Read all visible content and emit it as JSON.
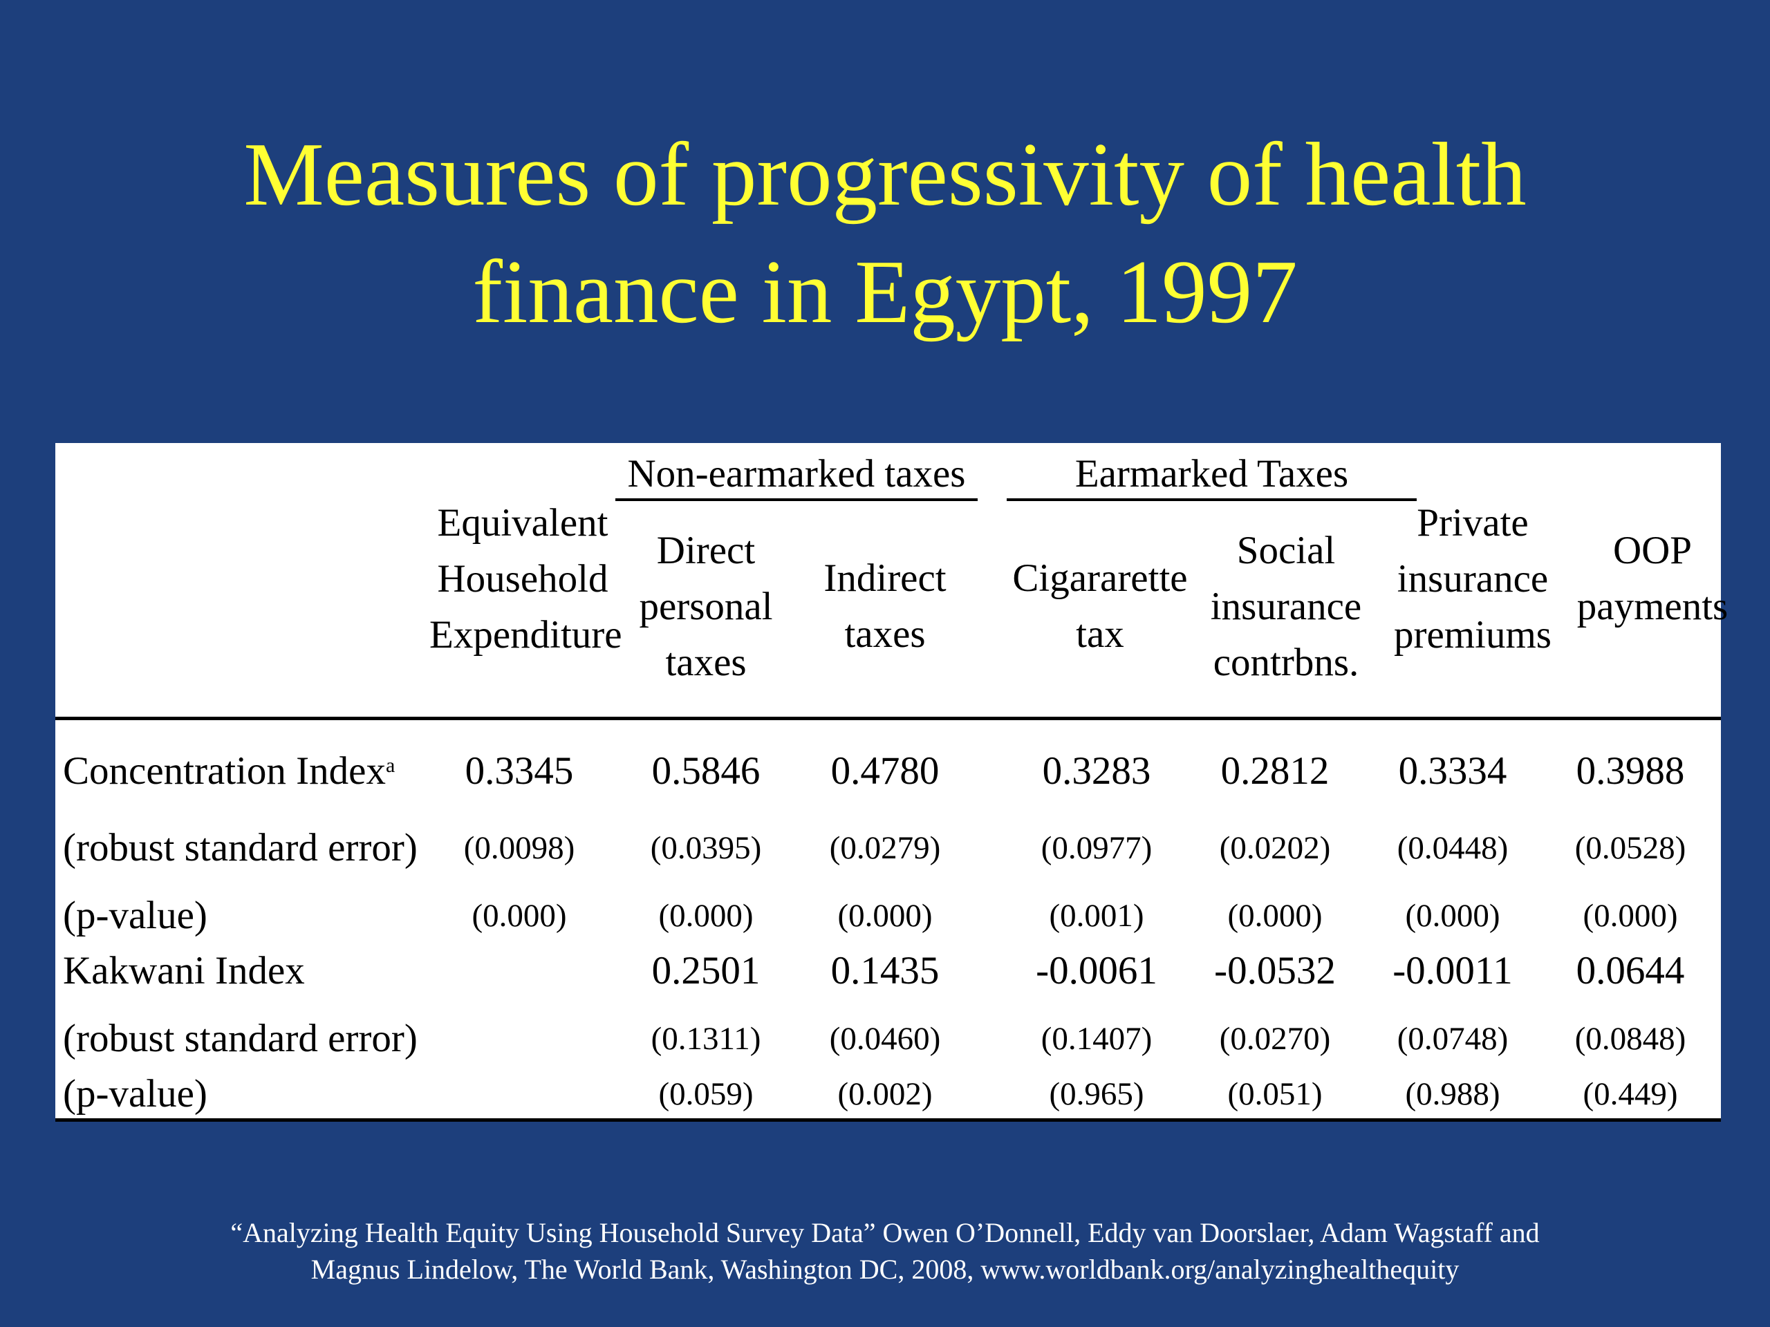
{
  "title": {
    "line1": "Measures of progressivity of health",
    "line2": "finance in Egypt, 1997"
  },
  "table": {
    "groups": {
      "non_earmarked": "Non-earmarked taxes",
      "earmarked": "Earmarked Taxes"
    },
    "columns": [
      {
        "line1": "Equivalent",
        "line2": "Household",
        "line3": "Expenditure"
      },
      {
        "line1": "Direct",
        "line2": "personal",
        "line3": "taxes"
      },
      {
        "line1": "Indirect",
        "line2": "taxes"
      },
      {
        "line1": "Cigararette",
        "line2": "tax"
      },
      {
        "line1": "Social",
        "line2": "insurance",
        "line3": "contrbns."
      },
      {
        "line1": "Private",
        "line2": "insurance",
        "line3": "premiums"
      },
      {
        "line1": "OOP",
        "line2": "payments"
      }
    ],
    "rows": [
      {
        "label": "Concentration Index",
        "sup": "a",
        "values": [
          "0.3345",
          "0.5846",
          "0.4780",
          "0.3283",
          "0.2812",
          "0.3334",
          "0.3988"
        ]
      },
      {
        "label": "(robust standard error)",
        "values": [
          "(0.0098)",
          "(0.0395)",
          "(0.0279)",
          "(0.0977)",
          "(0.0202)",
          "(0.0448)",
          "(0.0528)"
        ]
      },
      {
        "label": "(p-value)",
        "values": [
          "(0.000)",
          "(0.000)",
          "(0.000)",
          "(0.001)",
          "(0.000)",
          "(0.000)",
          "(0.000)"
        ]
      },
      {
        "label": "Kakwani Index",
        "values": [
          "",
          "0.2501",
          "0.1435",
          "-0.0061",
          "-0.0532",
          "-0.0011",
          "0.0644"
        ]
      },
      {
        "label": "(robust standard error)",
        "values": [
          "",
          "(0.1311)",
          "(0.0460)",
          "(0.1407)",
          "(0.0270)",
          "(0.0748)",
          "(0.0848)"
        ]
      },
      {
        "label": "(p-value)",
        "values": [
          "",
          "(0.059)",
          "(0.002)",
          "(0.965)",
          "(0.051)",
          "(0.988)",
          "(0.449)"
        ]
      }
    ]
  },
  "footer": {
    "line1": "“Analyzing Health Equity Using Household Survey Data” Owen O’Donnell, Eddy van Doorslaer, Adam Wagstaff and",
    "line2": "Magnus Lindelow, The World Bank, Washington DC, 2008, www.worldbank.org/analyzinghealthequity"
  },
  "colors": {
    "background": "#1d3f7c",
    "title": "#ffff33",
    "footer": "#ffffff",
    "table_background": "#ffffff"
  }
}
